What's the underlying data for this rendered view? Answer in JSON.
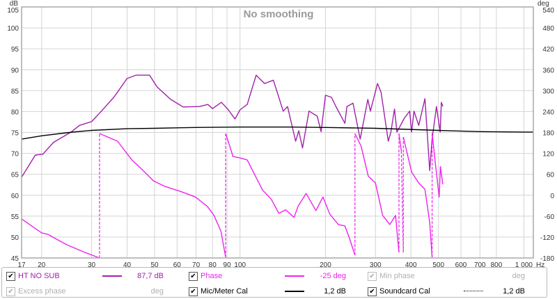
{
  "chart_data": {
    "type": "line",
    "title": "No smoothing",
    "ylabel": "dB",
    "y2label": "deg",
    "xunit": "Hz",
    "xscale": "log",
    "xlim": [
      17,
      1080
    ],
    "ylim": [
      45,
      105
    ],
    "y2lim": [
      -180,
      540
    ],
    "grid": true,
    "x_ticks": [
      17,
      20,
      30,
      40,
      50,
      60,
      70,
      80,
      90,
      100,
      200,
      300,
      400,
      500,
      600,
      700,
      800,
      1000
    ],
    "x_tick_labels": [
      "17",
      "20",
      "30",
      "40",
      "50",
      "60",
      "70",
      "80",
      "90",
      "100",
      "200",
      "300",
      "400",
      "500",
      "600",
      "700",
      "800",
      "1 000"
    ],
    "y_ticks": [
      45,
      50,
      55,
      60,
      65,
      70,
      75,
      80,
      85,
      90,
      95,
      100,
      105
    ],
    "y2_ticks": [
      -180,
      -120,
      -60,
      0,
      60,
      120,
      180,
      240,
      300,
      360,
      420,
      480,
      540
    ],
    "series": [
      {
        "name": "HT NO SUB",
        "axis": "left",
        "color": "#a020a8",
        "x": [
          17,
          19,
          20.2,
          22,
          25.4,
          27.2,
          30,
          32.5,
          36,
          40,
          43,
          48,
          51,
          57,
          63,
          72,
          77,
          80,
          86,
          91,
          96,
          100,
          106,
          114,
          122,
          131,
          142,
          147,
          157,
          161,
          166,
          175,
          187,
          193,
          200,
          210,
          217,
          234,
          238,
          250,
          265,
          282,
          288,
          305,
          314,
          333,
          340,
          350,
          357,
          379,
          396,
          402,
          410,
          426,
          448,
          466,
          475,
          492,
          507,
          512,
          518
        ],
        "y": [
          64.3,
          69.6,
          69.8,
          72.6,
          75.1,
          76.7,
          77.6,
          80.1,
          83.5,
          87.9,
          88.7,
          88.7,
          85.9,
          82.9,
          81.1,
          81.2,
          81.7,
          80.7,
          82.2,
          80.4,
          78.2,
          80.4,
          81.7,
          88.7,
          86.7,
          87.5,
          80.1,
          81.2,
          72.9,
          75.4,
          71.3,
          80.1,
          78.9,
          75.2,
          83.9,
          83.4,
          81.4,
          77.2,
          81.2,
          82.0,
          73.4,
          82.9,
          80.1,
          86.7,
          84.6,
          72.9,
          75.1,
          80.6,
          75.1,
          78.4,
          80.1,
          75.1,
          80.1,
          76.7,
          83.1,
          65.9,
          73.4,
          81.2,
          75.1,
          82.2,
          81.2
        ]
      },
      {
        "name": "Phase",
        "axis": "right",
        "color": "#ee22ee",
        "x": [
          17,
          20,
          21,
          24.5,
          28,
          32,
          32,
          37,
          41.6,
          45,
          49.6,
          54.5,
          62.6,
          69.6,
          76.7,
          81,
          85.7,
          89,
          89,
          94.5,
          100,
          106,
          120,
          129,
          137,
          145,
          155,
          160,
          171,
          185,
          196,
          207,
          222,
          234,
          243,
          254,
          254,
          267,
          283,
          300,
          318,
          337,
          353,
          363,
          363,
          370,
          376,
          376,
          402,
          426,
          448,
          466,
          475,
          475,
          489,
          503,
          508,
          518
        ],
        "y": [
          -68,
          -108,
          -112,
          -142,
          -162,
          -180,
          177,
          155,
          101,
          75,
          41,
          25,
          9,
          -5,
          -32,
          -58,
          -104,
          -178,
          177,
          111,
          107,
          101,
          15,
          -12,
          -52,
          -42,
          -64,
          -32,
          5,
          -44,
          -5,
          -54,
          -84,
          -88,
          -124,
          -172,
          177,
          141,
          55,
          35,
          -58,
          -84,
          -58,
          -164,
          177,
          127,
          -164,
          167,
          67,
          35,
          17,
          -78,
          -178,
          178,
          82,
          -5,
          82,
          31
        ]
      },
      {
        "name": "Mic/Meter Cal",
        "axis": "left",
        "color": "#000000",
        "x": [
          17,
          20,
          25,
          30,
          40,
          50,
          70,
          100,
          150,
          200,
          300,
          500,
          700,
          1000,
          1080
        ],
        "y": [
          73.4,
          74.2,
          75.0,
          75.5,
          75.9,
          76.0,
          76.2,
          76.3,
          76.3,
          76.2,
          76.0,
          75.5,
          75.2,
          75.1,
          75.1
        ]
      }
    ]
  },
  "legend": {
    "items": [
      {
        "label": "HT NO SUB",
        "value": "87,7 dB",
        "checked": true,
        "enabled": true,
        "color": "#a020a8",
        "line": "solid"
      },
      {
        "label": "Phase",
        "value": "-25 deg",
        "checked": true,
        "enabled": true,
        "color": "#ee22ee",
        "line": "solid"
      },
      {
        "label": "Min phase",
        "value": "deg",
        "checked": true,
        "enabled": false,
        "color": "#bbbbbb",
        "line": "none"
      },
      {
        "label": "Excess phase",
        "value": "deg",
        "checked": true,
        "enabled": false,
        "color": "#bbbbbb",
        "line": "none"
      },
      {
        "label": "Mic/Meter Cal",
        "value": "1,2 dB",
        "checked": true,
        "enabled": true,
        "color": "#000000",
        "line": "solid"
      },
      {
        "label": "Soundcard Cal",
        "value": "1,2 dB",
        "checked": true,
        "enabled": true,
        "color": "#000000",
        "line": "dotted"
      }
    ]
  }
}
